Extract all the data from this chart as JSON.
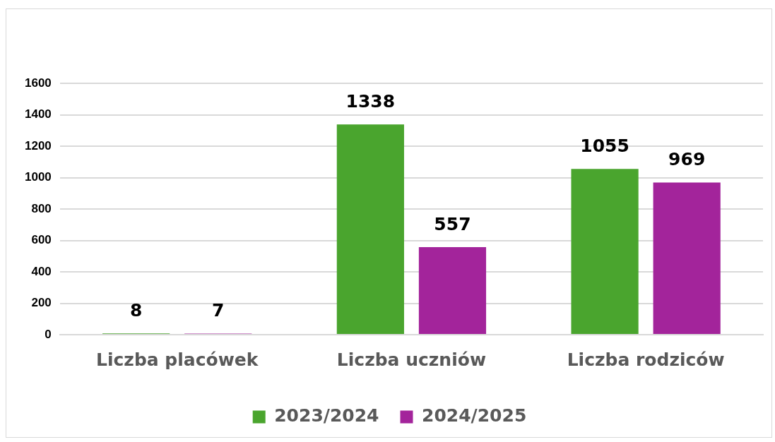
{
  "chart_data": {
    "type": "bar",
    "categories": [
      "Liczba placówek",
      "Liczba uczniów",
      "Liczba rodziców"
    ],
    "series": [
      {
        "name": "2023/2024",
        "color": "#4aa52e",
        "values": [
          8,
          1338,
          1055
        ]
      },
      {
        "name": "2024/2025",
        "color": "#a3249b",
        "values": [
          7,
          557,
          969
        ]
      }
    ],
    "ylim": [
      0,
      1600
    ],
    "yticks": [
      0,
      200,
      400,
      600,
      800,
      1000,
      1200,
      1400,
      1600
    ],
    "grid": "y",
    "legend": "bottom",
    "data_labels": true
  }
}
